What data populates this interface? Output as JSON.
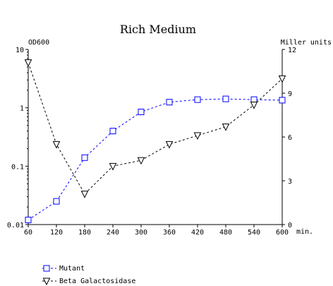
{
  "chart_data": {
    "type": "line",
    "title": "Rich Medium",
    "left_axis_label": "OD600",
    "right_axis_label": "Miller units",
    "x_unit_label": "min.",
    "x": [
      60,
      120,
      180,
      240,
      300,
      360,
      420,
      480,
      540,
      600
    ],
    "x_ticks": [
      "60",
      "120",
      "180",
      "240",
      "300",
      "360",
      "420",
      "480",
      "540",
      "600"
    ],
    "xlim": [
      60,
      600
    ],
    "left_axis": {
      "scale": "log",
      "ylim": [
        0.01,
        10
      ],
      "ticks": [
        "10",
        "1",
        "0.1",
        "0.01"
      ],
      "tick_values": [
        10,
        1,
        0.1,
        0.01
      ]
    },
    "right_axis": {
      "scale": "linear",
      "ylim": [
        0,
        12
      ],
      "ticks": [
        "12",
        "9",
        "6",
        "3",
        "0"
      ],
      "tick_values": [
        12,
        9,
        6,
        3,
        0
      ]
    },
    "grid": false,
    "legend_position": "bottom-left",
    "series": [
      {
        "name": "Mutant",
        "axis": "left",
        "marker": "square",
        "color": "#0000ff",
        "line_style": "dashed",
        "values": [
          0.012,
          0.025,
          0.14,
          0.4,
          0.85,
          1.25,
          1.38,
          1.42,
          1.38,
          1.35
        ]
      },
      {
        "name": "Beta Galactosidase",
        "axis": "right",
        "marker": "triangle-down",
        "color": "#000000",
        "line_style": "dashed",
        "values": [
          11.1,
          5.5,
          2.1,
          4.0,
          4.4,
          5.5,
          6.1,
          6.7,
          8.2,
          10.0
        ]
      }
    ]
  }
}
